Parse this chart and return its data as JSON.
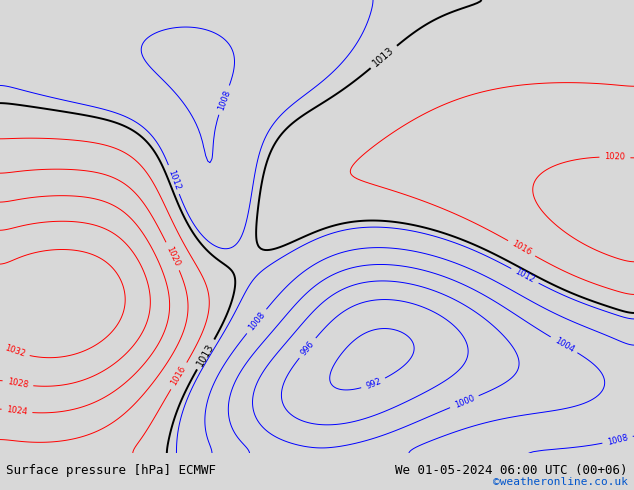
{
  "title_left": "Surface pressure [hPa] ECMWF",
  "title_right": "We 01-05-2024 06:00 UTC (00+06)",
  "copyright": "©weatheronline.co.uk",
  "land_color": "#aade87",
  "ocean_color": "#c8d0dc",
  "bg_color": "#c8d0dc",
  "footer_bg": "#d8d8d8",
  "text_color": "#000000",
  "copyright_color": "#0055cc",
  "map_lon_min": -100,
  "map_lon_max": -20,
  "map_lat_min": -62,
  "map_lat_max": 15,
  "font_size_footer": 9,
  "font_size_labels": 6,
  "contour_step": 4,
  "contour_min": 980,
  "contour_max": 1044,
  "black_level": 1013,
  "pacific_high_lon": -92,
  "pacific_high_lat": -37,
  "pacific_high_amp": 24,
  "pacific_high_sx": 18,
  "pacific_high_sy": 16,
  "atlantic_high_lon": -18,
  "atlantic_high_lat": -28,
  "atlantic_high_amp": 10,
  "atlantic_high_sx": 20,
  "atlantic_high_sy": 18,
  "south_low_lon": -62,
  "south_low_lat": -52,
  "south_low_amp": -20,
  "south_low_sx": 12,
  "south_low_sy": 10,
  "south_low2_lon": -45,
  "south_low2_lat": -40,
  "south_low2_amp": -14,
  "south_low2_sx": 10,
  "south_low2_sy": 10,
  "south_low3_lon": -57,
  "south_low3_lat": -35,
  "south_low3_amp": -8,
  "south_low3_sx": 8,
  "south_low3_sy": 8,
  "andes_low_lon": -74,
  "andes_low_lat": -22,
  "andes_low_amp": -12,
  "andes_low_sx": 5,
  "andes_low_sy": 12,
  "brazil_high_lon": -45,
  "brazil_high_lat": -10,
  "brazil_high_amp": 3,
  "brazil_high_sx": 20,
  "brazil_high_sy": 15,
  "north_low_lon": -77,
  "north_low_lat": 5,
  "north_low_amp": -5,
  "north_low_sx": 15,
  "north_low_sy": 10,
  "se_atlantic_low_lon": -25,
  "se_atlantic_low_lat": -48,
  "se_atlantic_low_amp": -12,
  "se_atlantic_low_sx": 12,
  "se_atlantic_low_sy": 10,
  "sigma_smooth": 4
}
